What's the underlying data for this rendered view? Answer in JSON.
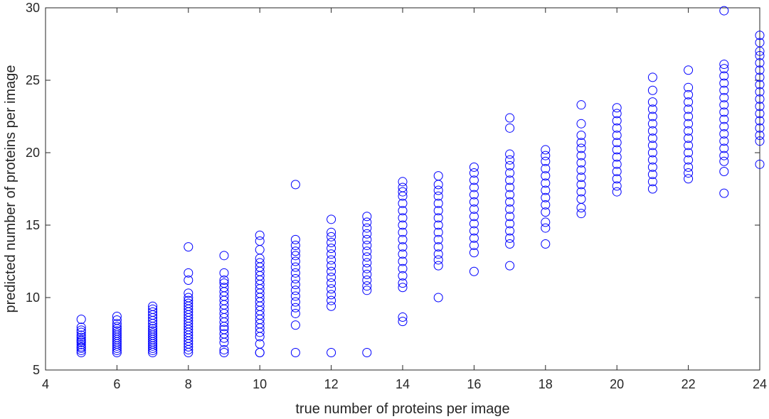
{
  "chart_data": {
    "type": "scatter",
    "xlabel": "true number of proteins per image",
    "ylabel": "predicted number of proteins per image",
    "xlim": [
      4,
      24
    ],
    "ylim": [
      5,
      30
    ],
    "xticks": [
      4,
      6,
      8,
      10,
      12,
      14,
      16,
      18,
      20,
      22,
      24
    ],
    "yticks": [
      5,
      10,
      15,
      20,
      25,
      30
    ],
    "marker": "open-circle",
    "marker_color": "#0000ff",
    "grid": false,
    "series": [
      {
        "points": [
          {
            "x": 5,
            "y": [
              6.2,
              6.35,
              6.5,
              6.6,
              6.75,
              6.9,
              7.0,
              7.1,
              7.25,
              7.4,
              7.6,
              7.75,
              7.95,
              8.5
            ]
          },
          {
            "x": 6,
            "y": [
              6.2,
              6.35,
              6.5,
              6.65,
              6.8,
              6.95,
              7.1,
              7.25,
              7.4,
              7.55,
              7.7,
              7.85,
              8.0,
              8.2,
              8.45,
              8.7
            ]
          },
          {
            "x": 7,
            "y": [
              6.2,
              6.35,
              6.5,
              6.65,
              6.8,
              6.95,
              7.1,
              7.25,
              7.4,
              7.55,
              7.7,
              7.85,
              8.0,
              8.2,
              8.4,
              8.6,
              8.8,
              9.0,
              9.2,
              9.4
            ]
          },
          {
            "x": 8,
            "y": [
              6.2,
              6.4,
              6.6,
              6.8,
              7.0,
              7.2,
              7.4,
              7.6,
              7.8,
              8.0,
              8.2,
              8.4,
              8.6,
              8.8,
              9.0,
              9.2,
              9.4,
              9.6,
              9.8,
              10.0,
              10.3,
              11.2,
              11.7,
              13.5
            ]
          },
          {
            "x": 9,
            "y": [
              6.2,
              6.4,
              6.9,
              7.2,
              7.5,
              7.8,
              8.0,
              8.3,
              8.6,
              8.9,
              9.2,
              9.5,
              9.8,
              10.1,
              10.4,
              10.7,
              11.0,
              11.2,
              11.7,
              12.9
            ]
          },
          {
            "x": 10,
            "y": [
              6.2,
              6.2,
              6.8,
              7.3,
              7.6,
              7.9,
              8.2,
              8.5,
              8.8,
              9.1,
              9.4,
              9.7,
              10.0,
              10.3,
              10.6,
              10.9,
              11.2,
              11.5,
              11.8,
              12.1,
              12.4,
              12.7,
              13.3,
              13.9,
              14.3
            ]
          },
          {
            "x": 11,
            "y": [
              6.2,
              8.1,
              8.9,
              9.3,
              9.7,
              10.1,
              10.5,
              10.9,
              11.3,
              11.7,
              12.1,
              12.5,
              12.9,
              13.2,
              13.6,
              14.0,
              17.8
            ]
          },
          {
            "x": 12,
            "y": [
              6.2,
              9.4,
              9.8,
              10.2,
              10.6,
              11.0,
              11.4,
              11.8,
              12.2,
              12.6,
              13.0,
              13.4,
              13.8,
              14.2,
              14.5,
              15.4
            ]
          },
          {
            "x": 13,
            "y": [
              6.2,
              10.5,
              10.8,
              11.2,
              11.6,
              12.0,
              12.4,
              12.8,
              13.2,
              13.6,
              14.0,
              14.4,
              14.8,
              15.2,
              15.6
            ]
          },
          {
            "x": 14,
            "y": [
              8.35,
              8.65,
              10.7,
              11.0,
              11.5,
              12.0,
              12.5,
              13.0,
              13.5,
              14.0,
              14.5,
              15.0,
              15.5,
              16.0,
              16.5,
              17.0,
              17.3,
              17.6,
              18.0
            ]
          },
          {
            "x": 15,
            "y": [
              10.0,
              12.2,
              12.6,
              13.0,
              13.5,
              14.0,
              14.5,
              15.0,
              15.5,
              16.0,
              16.5,
              17.0,
              17.4,
              17.8,
              18.4
            ]
          },
          {
            "x": 16,
            "y": [
              11.8,
              13.1,
              13.6,
              14.1,
              14.6,
              15.1,
              15.6,
              16.1,
              16.6,
              17.1,
              17.6,
              18.1,
              18.6,
              19.0
            ]
          },
          {
            "x": 17,
            "y": [
              12.2,
              13.7,
              14.1,
              14.6,
              15.1,
              15.6,
              16.1,
              16.6,
              17.1,
              17.6,
              18.1,
              18.6,
              19.1,
              19.5,
              19.9,
              21.7,
              22.4
            ]
          },
          {
            "x": 18,
            "y": [
              13.7,
              14.8,
              15.2,
              15.9,
              16.4,
              16.9,
              17.4,
              17.9,
              18.4,
              18.9,
              19.4,
              19.8,
              20.2
            ]
          },
          {
            "x": 19,
            "y": [
              15.8,
              16.2,
              16.8,
              17.3,
              17.8,
              18.3,
              18.8,
              19.3,
              19.8,
              20.3,
              20.7,
              21.2,
              22.0,
              23.3
            ]
          },
          {
            "x": 20,
            "y": [
              17.3,
              17.7,
              18.2,
              18.7,
              19.2,
              19.7,
              20.2,
              20.7,
              21.2,
              21.7,
              22.2,
              22.7,
              23.1
            ]
          },
          {
            "x": 21,
            "y": [
              17.5,
              18.0,
              18.5,
              19.0,
              19.5,
              20.0,
              20.5,
              21.0,
              21.5,
              22.0,
              22.5,
              23.0,
              23.5,
              24.3,
              25.2
            ]
          },
          {
            "x": 22,
            "y": [
              18.2,
              18.6,
              19.0,
              19.5,
              20.0,
              20.5,
              21.0,
              21.5,
              22.0,
              22.5,
              23.0,
              23.5,
              24.0,
              24.5,
              25.7
            ]
          },
          {
            "x": 23,
            "y": [
              17.2,
              18.7,
              19.4,
              19.8,
              20.3,
              20.8,
              21.3,
              21.8,
              22.3,
              22.8,
              23.3,
              23.8,
              24.3,
              24.8,
              25.3,
              25.8,
              26.1,
              29.8
            ]
          },
          {
            "x": 24,
            "y": [
              19.2,
              20.8,
              21.2,
              21.7,
              22.2,
              22.7,
              23.2,
              23.7,
              24.2,
              24.7,
              25.2,
              25.7,
              26.2,
              26.7,
              27.0,
              27.6,
              28.1
            ]
          }
        ]
      }
    ]
  }
}
